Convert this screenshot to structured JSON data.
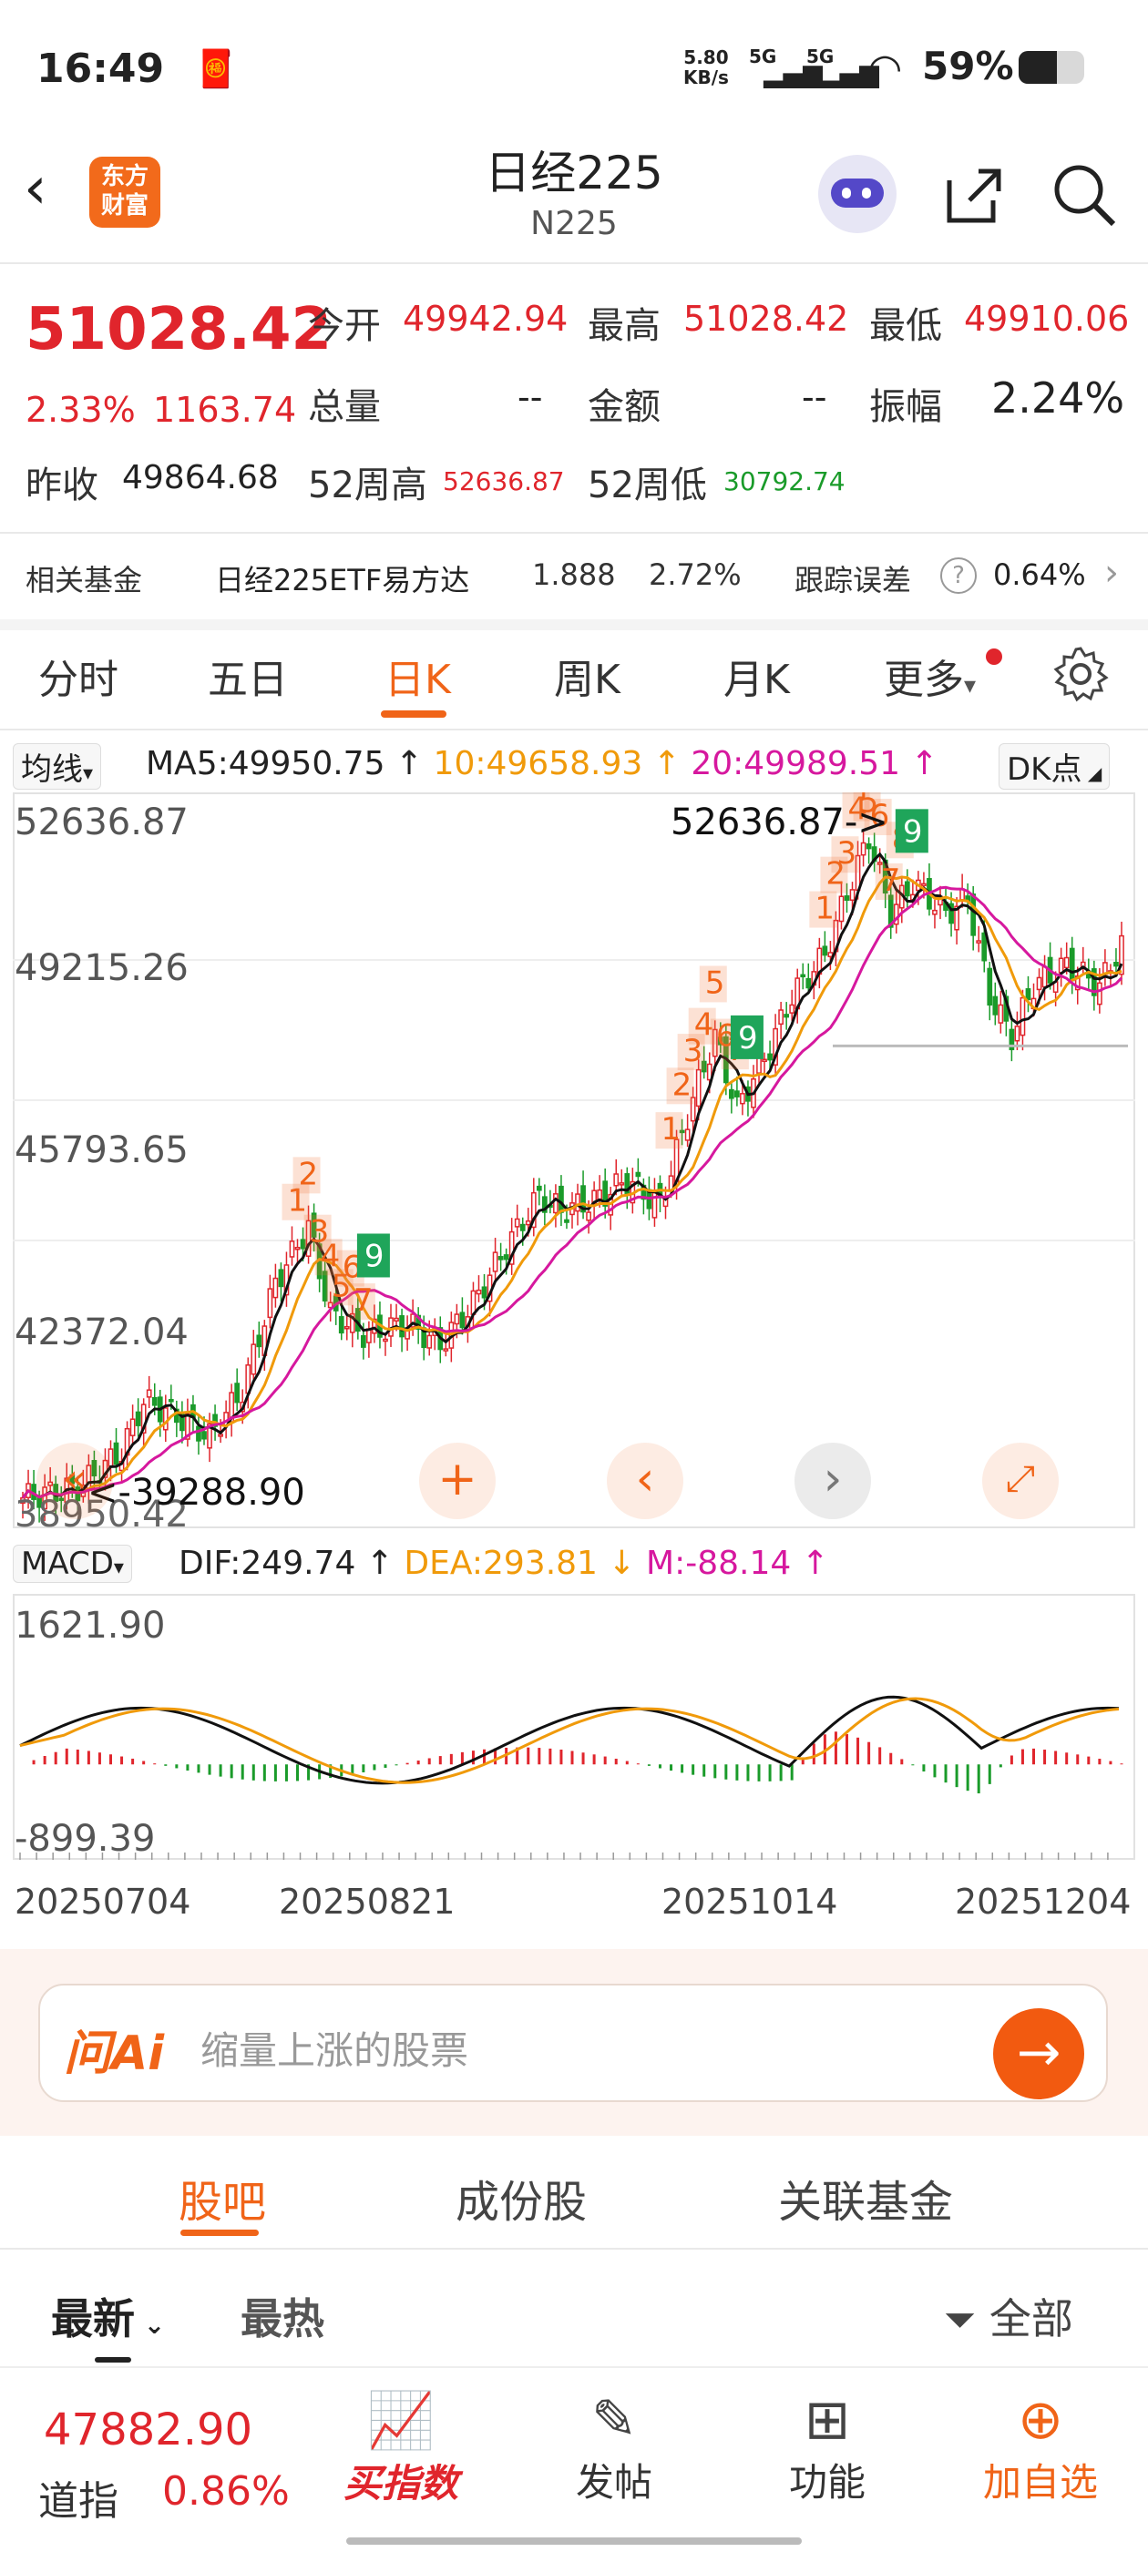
{
  "status_bar": {
    "time": "16:49",
    "net_speed_top": "5.80",
    "net_speed_bottom": "KB/s",
    "signal1": "5G",
    "signal2": "5G",
    "battery": "59%"
  },
  "header": {
    "logo_text_line1": "东方",
    "logo_text_line2": "财富",
    "title": "日经225",
    "subtitle": "N225"
  },
  "quote": {
    "price": "51028.42",
    "change_pct": "2.33%",
    "change_abs": "1163.74",
    "prev_close_label": "昨收",
    "prev_close": "49864.68",
    "open_label": "今开",
    "open": "49942.94",
    "high_label": "最高",
    "high": "51028.42",
    "low_label": "最低",
    "low": "49910.06",
    "volume_label": "总量",
    "volume": "--",
    "amount_label": "金额",
    "amount": "--",
    "amplitude_label": "振幅",
    "amplitude": "2.24%",
    "w52_high_label": "52周高",
    "w52_high": "52636.87",
    "w52_low_label": "52周低",
    "w52_low": "30792.74"
  },
  "fund": {
    "label": "相关基金",
    "name": "日经225ETF易方达",
    "price": "1.888",
    "pct": "2.72%",
    "tracking_label": "跟踪误差",
    "tracking": "0.64%"
  },
  "period_tabs": [
    "分时",
    "五日",
    "日K",
    "周K",
    "月K",
    "更多"
  ],
  "ma_legend": {
    "selector": "均线",
    "ma5": "MA5:49950.75",
    "ma10": "10:49658.93",
    "ma20": "20:49989.51",
    "dk": "DK点"
  },
  "kline": {
    "y_labels": [
      "52636.87",
      "49215.26",
      "45793.65",
      "42372.04",
      "38950.42"
    ],
    "high_annotation": "52636.87->",
    "low_annotation": "<-39288.90"
  },
  "macd_legend": {
    "selector": "MACD",
    "dif": "DIF:249.74",
    "dea": "DEA:293.81",
    "m": "M:-88.14"
  },
  "macd": {
    "y_top": "1621.90",
    "y_bottom": "-899.39"
  },
  "dates": [
    "20250704",
    "20250821",
    "20251014",
    "20251204"
  ],
  "ai_search": {
    "logo": "问Ai",
    "placeholder": "缩量上涨的股票"
  },
  "section_tabs": [
    "股吧",
    "成份股",
    "关联基金"
  ],
  "sub_tabs": {
    "latest": "最新",
    "hot": "最热",
    "filter": "全部"
  },
  "bottom_nav": {
    "index_value": "47882.90",
    "index_name": "道指",
    "index_pct": "0.86%",
    "buy_index": "买指数",
    "post": "发帖",
    "function": "功能",
    "add_watch": "加自选"
  },
  "colors": {
    "up": "#e0252c",
    "down": "#1a9b2a",
    "accent": "#f06418",
    "ma5": "#111111",
    "ma10": "#f09a0a",
    "ma20": "#d6189e"
  },
  "chart_data": {
    "type": "candlestick",
    "y_range": [
      38950.42,
      52636.87
    ],
    "period_high": 52636.87,
    "period_low": 39288.9,
    "macd_range": [
      -899.39,
      1621.9
    ]
  }
}
